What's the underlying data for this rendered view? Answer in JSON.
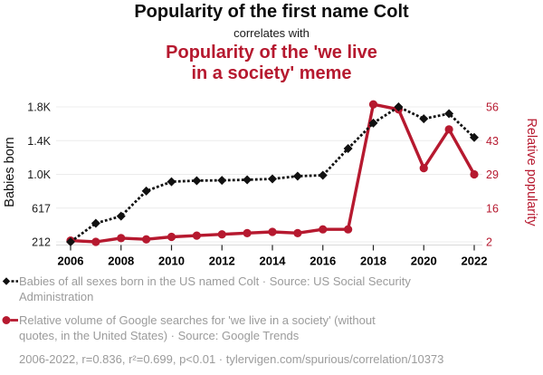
{
  "header": {
    "title_primary": "Popularity of the first name Colt",
    "connector": "correlates with",
    "title_secondary_line1": "Popularity of the 'we live",
    "title_secondary_line2": "in a society' meme"
  },
  "colors": {
    "accent_red": "#b6192f",
    "series_black": "#111111",
    "legend_gray": "#9b9b9b",
    "gridline": "#ececec",
    "axis_line": "#d9d9d9",
    "tick_mark": "#222222"
  },
  "chart_data": {
    "type": "line",
    "x": [
      2006,
      2007,
      2008,
      2009,
      2010,
      2011,
      2012,
      2013,
      2014,
      2015,
      2016,
      2017,
      2018,
      2019,
      2020,
      2021,
      2022
    ],
    "x_ticks": [
      "2006",
      "2008",
      "2010",
      "2012",
      "2014",
      "2016",
      "2018",
      "2020",
      "2022"
    ],
    "left_axis": {
      "label": "Babies born",
      "min": 212,
      "max": 1800,
      "tick_labels": [
        "1.8K",
        "1.4K",
        "1.0K",
        "617",
        "212"
      ]
    },
    "right_axis": {
      "label": "Relative popularity",
      "min": 2,
      "max": 56,
      "tick_labels": [
        "56",
        "43",
        "29",
        "16",
        "2"
      ]
    },
    "series": [
      {
        "id": "colt-babies",
        "name": "Babies of all sexes born in the US named Colt",
        "axis": "left",
        "color": "#111111",
        "style": "dashed",
        "marker": "diamond",
        "values": [
          212,
          430,
          515,
          810,
          920,
          932,
          936,
          942,
          953,
          985,
          995,
          1310,
          1610,
          1800,
          1660,
          1720,
          1440
        ]
      },
      {
        "id": "meme-searches",
        "name": "Relative volume of Google searches for 'we live in a society'",
        "axis": "right",
        "color": "#b6192f",
        "style": "solid",
        "marker": "circle",
        "values": [
          2.5,
          2,
          3.5,
          3,
          4,
          4.5,
          5,
          5.5,
          6,
          5.5,
          7,
          7,
          57,
          55,
          31.5,
          47,
          29
        ]
      }
    ],
    "grid": "horizontal-only",
    "legend_position": "bottom"
  },
  "legend": {
    "items": [
      {
        "marker": "black-diamond-dashed",
        "lines": [
          "Babies of all sexes born in the US named Colt · Source: US Social Security",
          "Administration"
        ]
      },
      {
        "marker": "red-circle-solid",
        "lines": [
          "Relative volume of Google searches for 'we live in a society' (without",
          "quotes, in the United States) · Source: Google Trends"
        ]
      }
    ],
    "footnote": "2006-2022, r=0.836, r²=0.699, p<0.01 · tylervigen.com/spurious/correlation/10373"
  }
}
